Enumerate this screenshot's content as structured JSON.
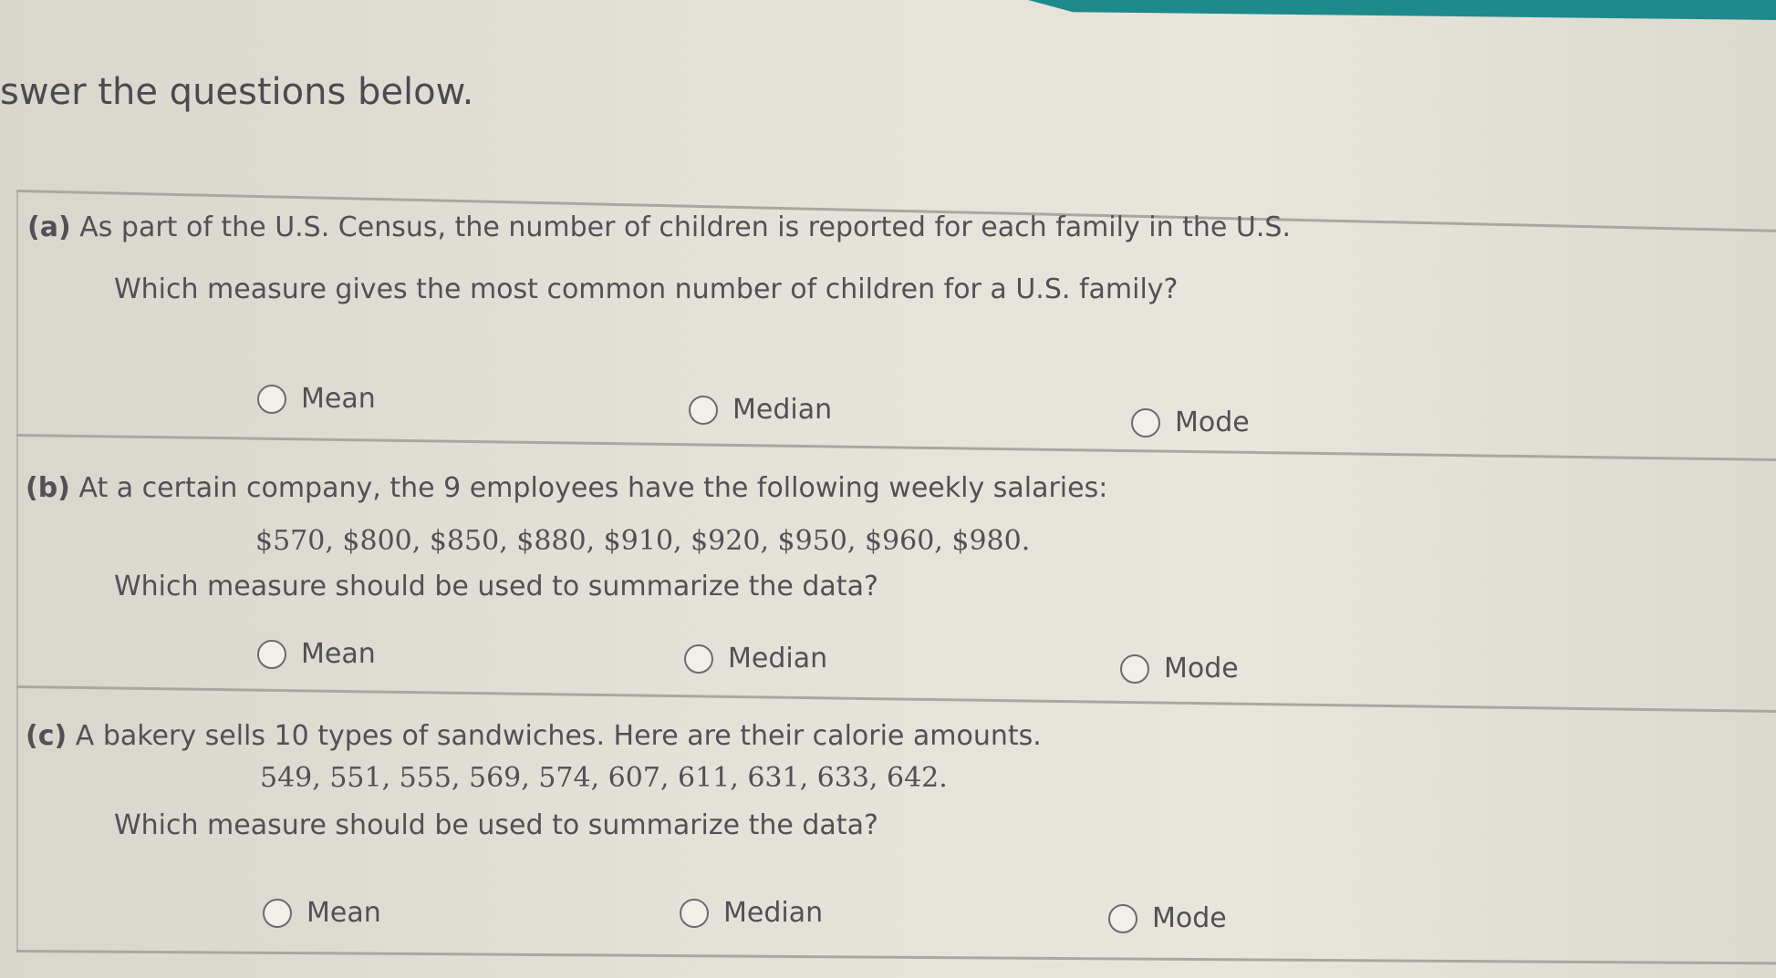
{
  "instructions": "swer the questions below.",
  "colors": {
    "accent_bar": "#1e8a8c",
    "text": "#505056"
  },
  "questions": [
    {
      "label": "(a)",
      "text_line1": "As part of the U.S. Census, the number of children is reported for each family in the U.S.",
      "text_line2": "Which measure gives the most common number of children for a U.S. family?",
      "options": [
        "Mean",
        "Median",
        "Mode"
      ]
    },
    {
      "label": "(b)",
      "text_line1": "At a certain company, the 9 employees have the following weekly salaries:",
      "data": "$570, $800, $850, $880, $910, $920, $950, $960, $980.",
      "text_line2": "Which measure should be used to summarize the data?",
      "options": [
        "Mean",
        "Median",
        "Mode"
      ]
    },
    {
      "label": "(c)",
      "text_line1": "A bakery sells 10 types of sandwiches. Here are their calorie amounts.",
      "data": "549, 551, 555, 569, 574, 607, 611, 631, 633, 642.",
      "text_line2": "Which measure should be used to summarize the data?",
      "options": [
        "Mean",
        "Median",
        "Mode"
      ]
    }
  ]
}
